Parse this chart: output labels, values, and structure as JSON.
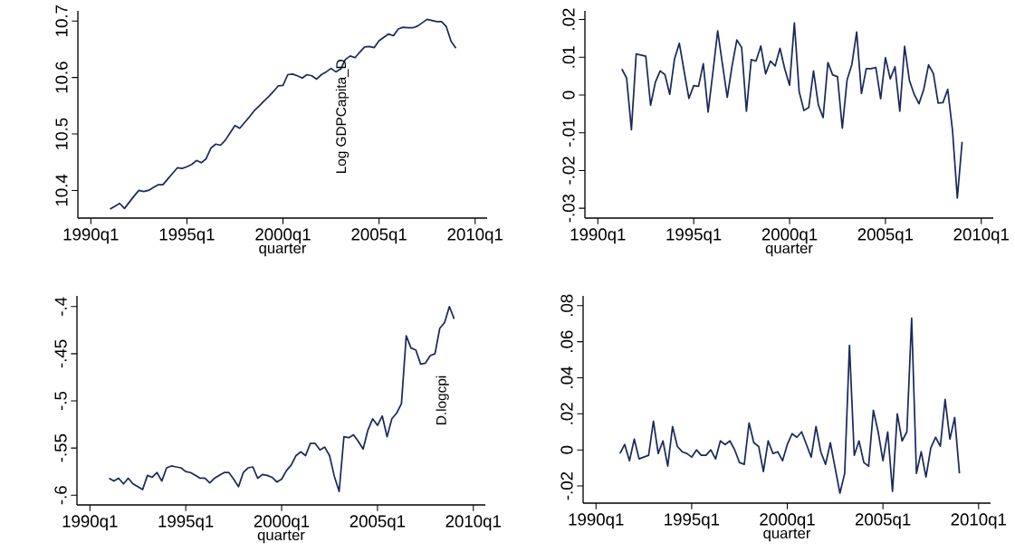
{
  "chart_data": [
    {
      "type": "line",
      "xlabel": "quarter",
      "annotations": [
        "Log GDPCapita_D"
      ],
      "categories": [
        "1990q1",
        null,
        null,
        null,
        null,
        null,
        null,
        null,
        null,
        null,
        null,
        null,
        null,
        null,
        null,
        null,
        null,
        null,
        null,
        null,
        "1995q1",
        null,
        null,
        null,
        null,
        null,
        null,
        null,
        null,
        null,
        null,
        null,
        null,
        null,
        null,
        null,
        null,
        null,
        null,
        null,
        "2000q1",
        null,
        null,
        null,
        null,
        null,
        null,
        null,
        null,
        null,
        null,
        null,
        null,
        null,
        null,
        null,
        null,
        null,
        null,
        null,
        "2005q1",
        null,
        null,
        null,
        null,
        null,
        null,
        null,
        null,
        null,
        null,
        null,
        null,
        null,
        null,
        null,
        null,
        null,
        null,
        null,
        "2010q1"
      ],
      "ylim": [
        10.351,
        10.718
      ],
      "yticks": [
        10.4,
        10.5,
        10.6,
        10.7
      ],
      "series": [
        {
          "color": "#1b2a5c",
          "values": [
            null,
            null,
            null,
            null,
            10.367,
            10.372,
            10.377,
            10.368,
            10.379,
            10.39,
            10.4,
            10.398,
            10.4,
            10.405,
            10.41,
            10.41,
            10.42,
            10.43,
            10.44,
            10.439,
            10.442,
            10.446,
            10.453,
            10.449,
            10.456,
            10.475,
            10.482,
            10.48,
            10.489,
            10.502,
            10.515,
            10.51,
            10.52,
            10.53,
            10.541,
            10.549,
            10.558,
            10.566,
            10.575,
            10.585,
            10.586,
            10.605,
            10.606,
            10.603,
            10.599,
            10.605,
            10.603,
            10.597,
            10.605,
            10.61,
            10.616,
            10.61,
            10.615,
            10.632,
            10.638,
            10.635,
            10.645,
            10.654,
            10.655,
            10.653,
            10.665,
            10.671,
            10.677,
            10.674,
            10.686,
            10.689,
            10.688,
            10.688,
            10.691,
            10.697,
            10.703,
            10.701,
            10.699,
            10.699,
            10.69,
            10.664,
            10.652,
            null,
            null,
            null,
            null
          ]
        }
      ]
    },
    {
      "type": "line",
      "xlabel": "quarter",
      "categories": [
        "1990q1",
        null,
        null,
        null,
        null,
        null,
        null,
        null,
        null,
        null,
        null,
        null,
        null,
        null,
        null,
        null,
        null,
        null,
        null,
        null,
        "1995q1",
        null,
        null,
        null,
        null,
        null,
        null,
        null,
        null,
        null,
        null,
        null,
        null,
        null,
        null,
        null,
        null,
        null,
        null,
        null,
        "2000q1",
        null,
        null,
        null,
        null,
        null,
        null,
        null,
        null,
        null,
        null,
        null,
        null,
        null,
        null,
        null,
        null,
        null,
        null,
        null,
        "2005q1",
        null,
        null,
        null,
        null,
        null,
        null,
        null,
        null,
        null,
        null,
        null,
        null,
        null,
        null,
        null,
        null,
        null,
        null,
        null,
        "2010q1"
      ],
      "ylim": [
        -0.0326,
        0.0223
      ],
      "yticks": [
        {
          "value": -0.03,
          "label": "-.03"
        },
        {
          "value": -0.02,
          "label": "-.02"
        },
        {
          "value": -0.01,
          "label": "-.01"
        },
        0,
        {
          "value": 0.01,
          "label": ".01"
        },
        {
          "value": 0.02,
          "label": ".02"
        }
      ],
      "series": [
        {
          "color": "#1b2a5c",
          "values": [
            null,
            null,
            null,
            null,
            null,
            0.0069,
            0.0045,
            -0.0092,
            0.0109,
            0.0106,
            0.0103,
            -0.0027,
            0.0034,
            0.0064,
            0.0054,
            0.0002,
            0.0096,
            0.0137,
            0.0063,
            -0.0009,
            0.0025,
            0.0023,
            0.0083,
            -0.0045,
            0.006,
            0.017,
            0.0081,
            -0.0006,
            0.0077,
            0.0146,
            0.0126,
            -0.0043,
            0.0094,
            0.009,
            0.013,
            0.0056,
            0.009,
            0.0077,
            0.0124,
            0.0069,
            0.0026,
            0.0191,
            0.0009,
            -0.0041,
            -0.0033,
            0.0064,
            -0.0026,
            -0.006,
            0.0086,
            0.0053,
            0.0049,
            -0.0088,
            0.004,
            0.0081,
            0.0167,
            0.0004,
            0.007,
            0.007,
            0.0073,
            -0.001,
            0.0099,
            0.0043,
            0.0075,
            -0.0043,
            0.0129,
            0.0039,
            0.0002,
            -0.0023,
            0.0015,
            0.008,
            0.0057,
            -0.0021,
            -0.002,
            0.0015,
            -0.0094,
            -0.0273,
            -0.0124,
            null,
            null,
            null,
            null
          ]
        }
      ]
    },
    {
      "type": "line",
      "xlabel": "quarter",
      "annotations": [
        "D.logcpi"
      ],
      "categories": [
        "1990q1",
        null,
        null,
        null,
        null,
        null,
        null,
        null,
        null,
        null,
        null,
        null,
        null,
        null,
        null,
        null,
        null,
        null,
        null,
        null,
        "1995q1",
        null,
        null,
        null,
        null,
        null,
        null,
        null,
        null,
        null,
        null,
        null,
        null,
        null,
        null,
        null,
        null,
        null,
        null,
        null,
        "2000q1",
        null,
        null,
        null,
        null,
        null,
        null,
        null,
        null,
        null,
        null,
        null,
        null,
        null,
        null,
        null,
        null,
        null,
        null,
        null,
        "2005q1",
        null,
        null,
        null,
        null,
        null,
        null,
        null,
        null,
        null,
        null,
        null,
        null,
        null,
        null,
        null,
        null,
        null,
        null,
        null,
        "2010q1"
      ],
      "ylim": [
        -0.6103,
        -0.3887
      ],
      "yticks": [
        {
          "value": -0.6,
          "label": "-.6"
        },
        {
          "value": -0.55,
          "label": "-.55"
        },
        {
          "value": -0.5,
          "label": "-.5"
        },
        {
          "value": -0.45,
          "label": "-.45"
        },
        {
          "value": -0.4,
          "label": "-.4"
        }
      ],
      "series": [
        {
          "color": "#1b2a5c",
          "values": [
            null,
            null,
            null,
            null,
            -0.582,
            -0.585,
            -0.582,
            -0.588,
            -0.582,
            -0.588,
            -0.591,
            -0.594,
            -0.579,
            -0.581,
            -0.576,
            -0.585,
            -0.571,
            -0.569,
            -0.57,
            -0.571,
            -0.575,
            -0.576,
            -0.579,
            -0.582,
            -0.582,
            -0.587,
            -0.582,
            -0.579,
            -0.576,
            -0.576,
            -0.583,
            -0.591,
            -0.576,
            -0.571,
            -0.57,
            -0.582,
            -0.578,
            -0.579,
            -0.581,
            -0.586,
            -0.583,
            -0.574,
            -0.568,
            -0.558,
            -0.554,
            -0.558,
            -0.545,
            -0.545,
            -0.552,
            -0.549,
            -0.558,
            -0.58,
            -0.596,
            -0.538,
            -0.539,
            -0.536,
            -0.543,
            -0.551,
            -0.531,
            -0.519,
            -0.526,
            -0.516,
            -0.538,
            -0.519,
            -0.513,
            -0.503,
            -0.431,
            -0.444,
            -0.446,
            -0.461,
            -0.46,
            -0.452,
            -0.45,
            -0.423,
            -0.417,
            -0.4,
            -0.413,
            null,
            null,
            null,
            null
          ]
        }
      ]
    },
    {
      "type": "line",
      "xlabel": "quarter",
      "categories": [
        "1990q1",
        null,
        null,
        null,
        null,
        null,
        null,
        null,
        null,
        null,
        null,
        null,
        null,
        null,
        null,
        null,
        null,
        null,
        null,
        null,
        "1995q1",
        null,
        null,
        null,
        null,
        null,
        null,
        null,
        null,
        null,
        null,
        null,
        null,
        null,
        null,
        null,
        null,
        null,
        null,
        null,
        "2000q1",
        null,
        null,
        null,
        null,
        null,
        null,
        null,
        null,
        null,
        null,
        null,
        null,
        null,
        null,
        null,
        null,
        null,
        null,
        null,
        "2005q1",
        null,
        null,
        null,
        null,
        null,
        null,
        null,
        null,
        null,
        null,
        null,
        null,
        null,
        null,
        null,
        null,
        null,
        null,
        null,
        "2010q1"
      ],
      "ylim": [
        -0.0295,
        0.0854
      ],
      "yticks": [
        {
          "value": -0.02,
          "label": "-.02"
        },
        0,
        {
          "value": 0.02,
          "label": ".02"
        },
        {
          "value": 0.04,
          "label": ".04"
        },
        {
          "value": 0.06,
          "label": ".06"
        },
        {
          "value": 0.08,
          "label": ".08"
        }
      ],
      "series": [
        {
          "color": "#1b2a5c",
          "values": [
            null,
            null,
            null,
            null,
            null,
            -0.002,
            0.003,
            -0.006,
            0.006,
            -0.005,
            -0.004,
            -0.003,
            0.016,
            -0.002,
            0.005,
            -0.009,
            0.013,
            0.002,
            -0.001,
            -0.002,
            -0.004,
            0.0,
            -0.003,
            -0.003,
            0.0,
            -0.005,
            0.005,
            0.003,
            0.005,
            0.0,
            -0.007,
            -0.008,
            0.015,
            0.004,
            0.002,
            -0.012,
            0.005,
            -0.002,
            -0.001,
            -0.006,
            0.003,
            0.009,
            0.007,
            0.01,
            0.003,
            -0.004,
            0.013,
            -0.001,
            -0.008,
            0.004,
            -0.01,
            -0.024,
            -0.013,
            0.058,
            -0.003,
            0.005,
            -0.007,
            -0.009,
            0.022,
            0.01,
            -0.006,
            0.01,
            -0.023,
            0.02,
            0.005,
            0.01,
            0.073,
            -0.013,
            -0.001,
            -0.015,
            0.001,
            0.007,
            0.002,
            0.028,
            0.006,
            0.018,
            -0.013,
            null,
            null,
            null,
            null
          ]
        }
      ]
    }
  ]
}
